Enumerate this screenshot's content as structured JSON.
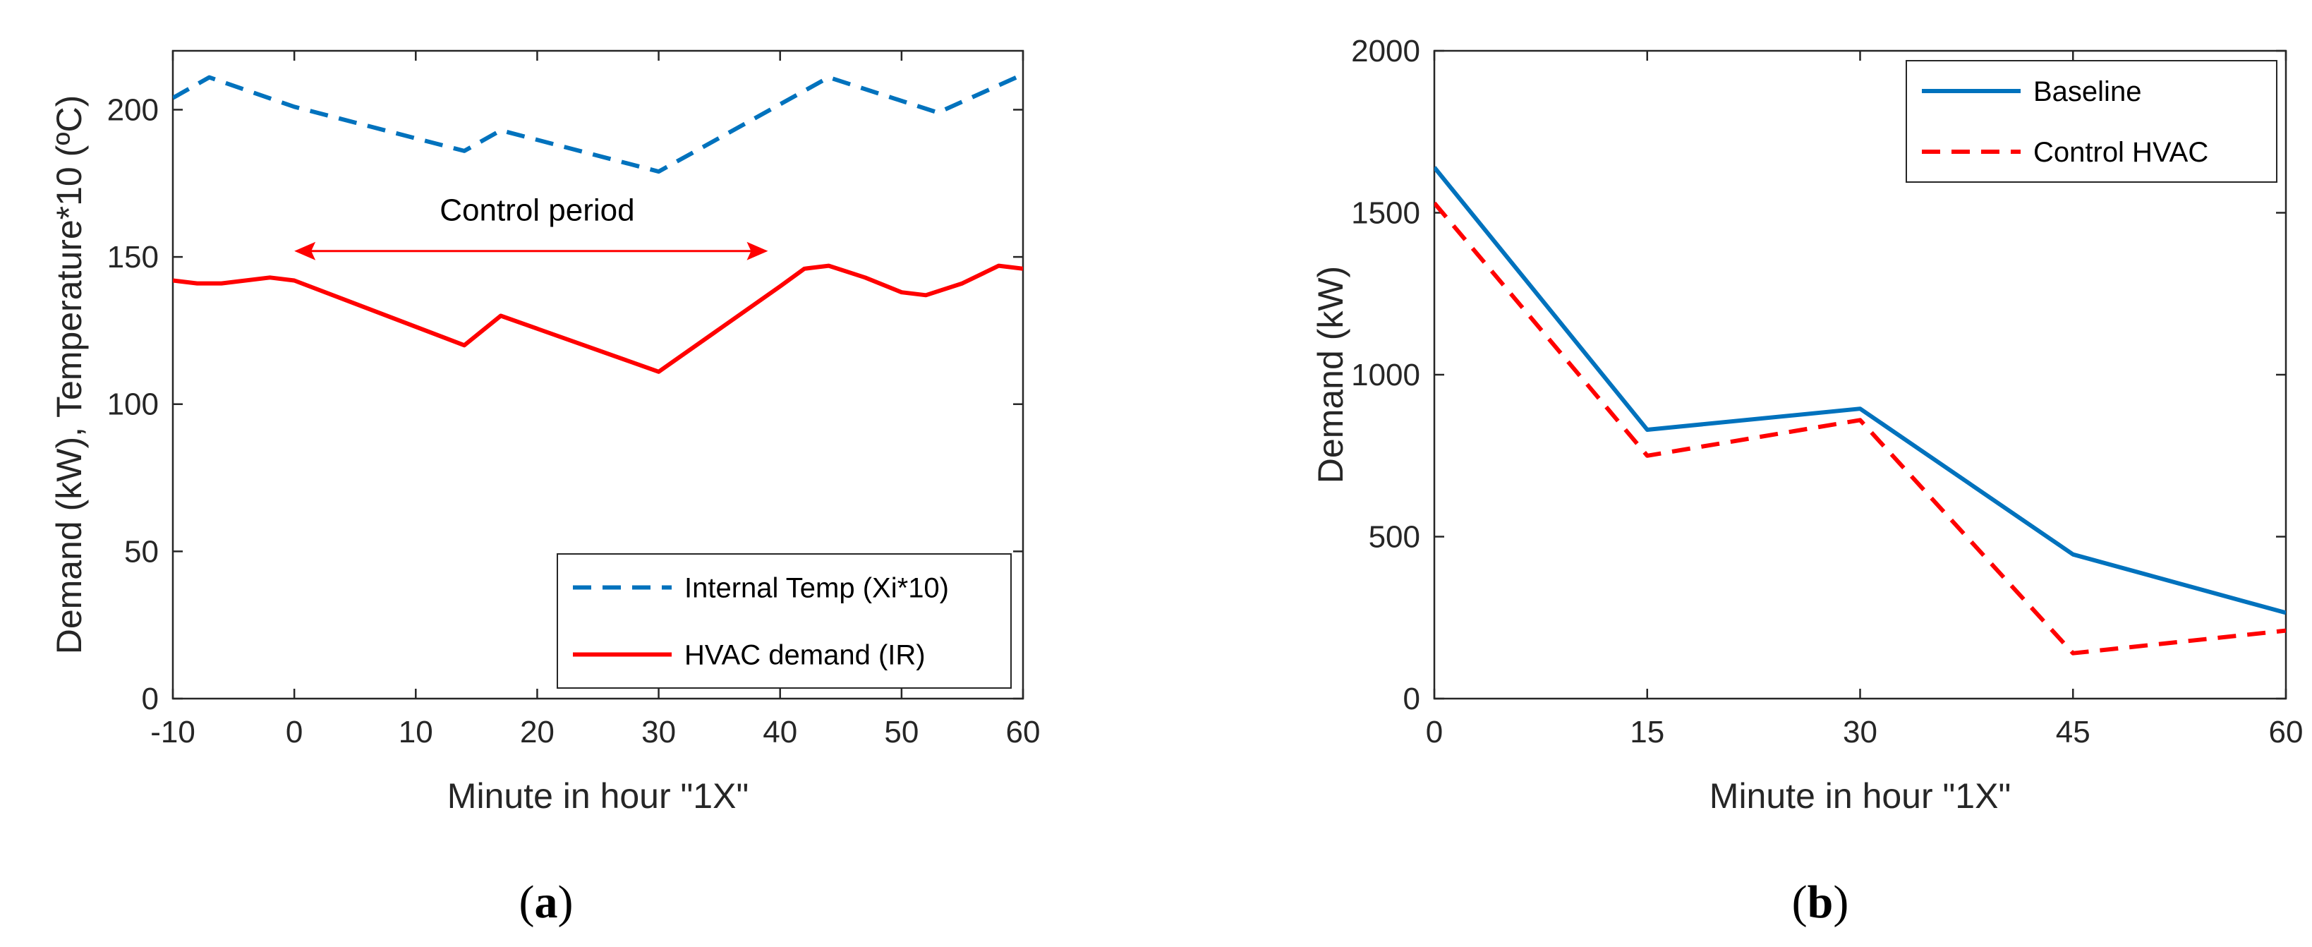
{
  "colors": {
    "blue": "#0072BD",
    "red": "#FF0000",
    "axis": "#262626"
  },
  "chart_data": [
    {
      "type": "line",
      "panel_label": "a",
      "xlabel": "Minute in hour \"1X\"",
      "ylabel": "Demand (kW), Temperature*10 (ºC)",
      "xlim": [
        -10,
        60
      ],
      "ylim": [
        0,
        220
      ],
      "xticks": [
        -10,
        0,
        10,
        20,
        30,
        40,
        50,
        60
      ],
      "yticks": [
        0,
        50,
        100,
        150,
        200
      ],
      "legend_position": "bottom-right",
      "series": [
        {
          "name": "Internal Temp (Xi*10)",
          "style": "dashed",
          "color": "#0072BD",
          "x": [
            -10,
            -7,
            0,
            14,
            17,
            30,
            44,
            53,
            60
          ],
          "y": [
            204,
            211,
            201,
            186,
            193,
            179,
            211,
            199,
            212
          ]
        },
        {
          "name": "HVAC demand (IR)",
          "style": "solid",
          "color": "#FF0000",
          "x": [
            -10,
            -8,
            -6,
            -2,
            0,
            14,
            17,
            30,
            40,
            42,
            44,
            47,
            50,
            52,
            55,
            58,
            60
          ],
          "y": [
            142,
            141,
            141,
            143,
            142,
            120,
            130,
            111,
            140,
            146,
            147,
            143,
            138,
            137,
            141,
            147,
            146
          ]
        }
      ],
      "annotations": [
        {
          "text": "Control period",
          "x": 20,
          "y": 160,
          "arrow_x": [
            0,
            39
          ],
          "arrow_y": 152
        }
      ]
    },
    {
      "type": "line",
      "panel_label": "b",
      "xlabel": "Minute in hour \"1X\"",
      "ylabel": "Demand (kW)",
      "xlim": [
        0,
        60
      ],
      "ylim": [
        0,
        2000
      ],
      "xticks": [
        0,
        15,
        30,
        45,
        60
      ],
      "yticks": [
        0,
        500,
        1000,
        1500,
        2000
      ],
      "legend_position": "top-right",
      "series": [
        {
          "name": "Baseline",
          "style": "solid",
          "color": "#0072BD",
          "x": [
            0,
            15,
            30,
            45,
            60
          ],
          "y": [
            1640,
            830,
            895,
            445,
            265
          ]
        },
        {
          "name": "Control HVAC",
          "style": "dashed",
          "color": "#FF0000",
          "x": [
            0,
            15,
            30,
            45,
            60
          ],
          "y": [
            1530,
            750,
            860,
            140,
            210
          ]
        }
      ]
    }
  ]
}
